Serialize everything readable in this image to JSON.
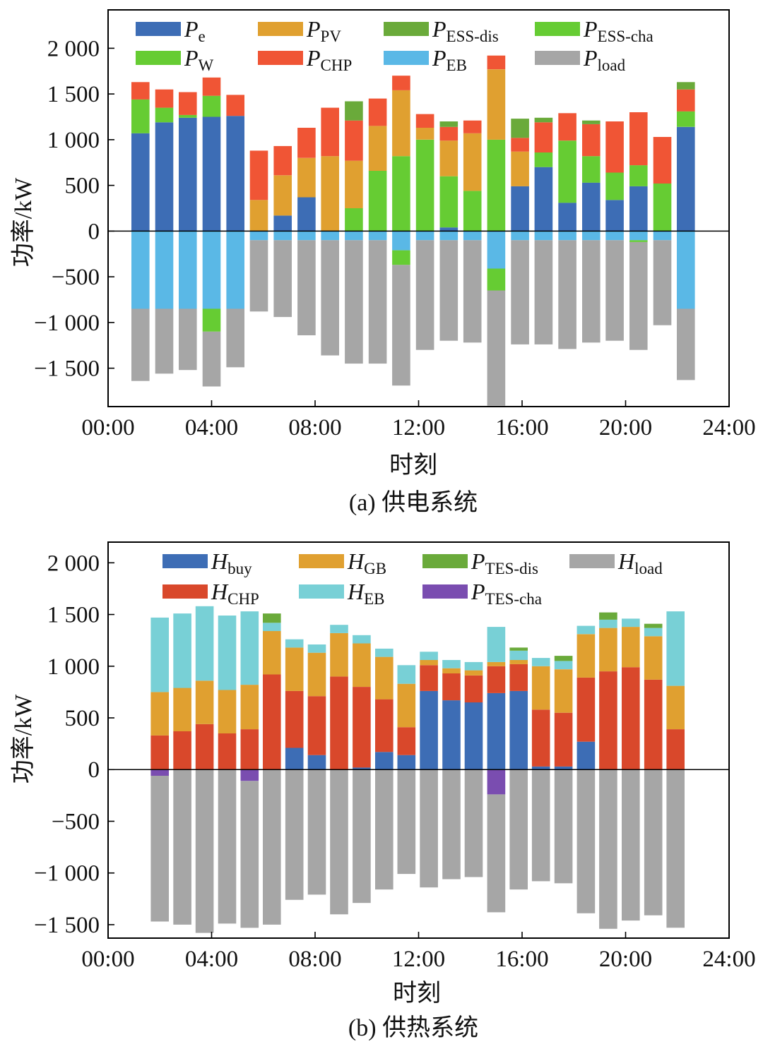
{
  "chart_data": [
    {
      "type": "bar",
      "stacked": true,
      "caption": "(a) 供电系统",
      "xlabel": "时刻",
      "ylabel": "功率/kW",
      "xlim": [
        0,
        24
      ],
      "ylim": [
        -1920,
        2420
      ],
      "x_ticks": [
        {
          "value": 0,
          "label": "00:00"
        },
        {
          "value": 4,
          "label": "04:00"
        },
        {
          "value": 8,
          "label": "08:00"
        },
        {
          "value": 12,
          "label": "12:00"
        },
        {
          "value": 16,
          "label": "16:00"
        },
        {
          "value": 20,
          "label": "20:00"
        },
        {
          "value": 24,
          "label": "24:00"
        }
      ],
      "y_ticks": [
        {
          "value": 2000,
          "label": "2 000"
        },
        {
          "value": 1500,
          "label": "1 500"
        },
        {
          "value": 1000,
          "label": "1 000"
        },
        {
          "value": 500,
          "label": "500"
        },
        {
          "value": 0,
          "label": "0"
        },
        {
          "value": -500,
          "label": "−500"
        },
        {
          "value": -1000,
          "label": "−1 000"
        },
        {
          "value": -1500,
          "label": "−1 500"
        }
      ],
      "hours": [
        1.25,
        2.17,
        3.08,
        4.0,
        4.92,
        5.83,
        6.75,
        7.67,
        8.58,
        9.5,
        10.42,
        11.33,
        12.25,
        13.17,
        14.08,
        15.0,
        15.92,
        16.83,
        17.75,
        18.67,
        19.58,
        20.5,
        21.42,
        22.33
      ],
      "bar_width_hours": 0.7,
      "legend_rows": [
        [
          "Pe",
          "PPV",
          "PESSdis",
          "PESScha"
        ],
        [
          "PW",
          "PCHP",
          "PEB",
          "Pload"
        ]
      ],
      "series": [
        {
          "key": "Pe",
          "name": "P",
          "sub": "e",
          "color": "#3d6db5",
          "values": [
            1070,
            1190,
            1240,
            1250,
            1260,
            0,
            170,
            370,
            0,
            0,
            0,
            0,
            0,
            40,
            0,
            0,
            490,
            700,
            310,
            530,
            340,
            490,
            0,
            1140
          ]
        },
        {
          "key": "PW",
          "name": "P",
          "sub": "W",
          "color": "#66cc33",
          "values": [
            370,
            160,
            30,
            230,
            0,
            0,
            0,
            0,
            0,
            250,
            660,
            820,
            1000,
            560,
            440,
            1000,
            0,
            160,
            680,
            290,
            300,
            230,
            520,
            170
          ]
        },
        {
          "key": "PPV",
          "name": "P",
          "sub": "PV",
          "color": "#e0a030",
          "values": [
            0,
            0,
            0,
            0,
            0,
            340,
            440,
            430,
            820,
            520,
            490,
            720,
            130,
            390,
            630,
            770,
            380,
            0,
            0,
            0,
            0,
            0,
            0,
            0
          ]
        },
        {
          "key": "PCHP",
          "name": "P",
          "sub": "CHP",
          "color": "#f05535",
          "values": [
            190,
            200,
            250,
            200,
            230,
            540,
            320,
            330,
            530,
            440,
            300,
            160,
            150,
            150,
            140,
            150,
            150,
            330,
            300,
            350,
            560,
            580,
            510,
            240
          ]
        },
        {
          "key": "PESSdis",
          "name": "P",
          "sub": "ESS-dis",
          "color": "#6aaa3a",
          "values": [
            0,
            0,
            0,
            0,
            0,
            0,
            0,
            0,
            0,
            210,
            0,
            0,
            0,
            60,
            0,
            0,
            210,
            50,
            0,
            40,
            0,
            0,
            0,
            80
          ]
        },
        {
          "key": "PEB",
          "name": "P",
          "sub": "EB",
          "color": "#5ab8e6",
          "values": [
            -850,
            -850,
            -850,
            -850,
            -850,
            -100,
            -100,
            -100,
            -100,
            -100,
            -100,
            -210,
            -100,
            -100,
            -100,
            -410,
            -100,
            -100,
            -100,
            -100,
            -100,
            -100,
            -100,
            -850
          ]
        },
        {
          "key": "PESScha",
          "name": "P",
          "sub": "ESS-cha",
          "color": "#66cc33",
          "values": [
            0,
            0,
            0,
            -250,
            0,
            0,
            0,
            0,
            0,
            0,
            0,
            -160,
            0,
            0,
            0,
            -240,
            0,
            0,
            0,
            0,
            0,
            -20,
            0,
            0
          ]
        },
        {
          "key": "Pload",
          "name": "P",
          "sub": "load",
          "color": "#a6a6a6",
          "values": [
            -790,
            -710,
            -670,
            -600,
            -640,
            -780,
            -840,
            -1040,
            -1260,
            -1350,
            -1350,
            -1320,
            -1200,
            -1100,
            -1120,
            -1260,
            -1140,
            -1140,
            -1190,
            -1120,
            -1100,
            -1180,
            -930,
            -780
          ]
        }
      ]
    },
    {
      "type": "bar",
      "stacked": true,
      "caption": "(b) 供热系统",
      "xlabel": "时刻",
      "ylabel": "功率/kW",
      "xlim": [
        0,
        24
      ],
      "ylim": [
        -1630,
        2200
      ],
      "x_ticks": [
        {
          "value": 0,
          "label": "00:00"
        },
        {
          "value": 4,
          "label": "04:00"
        },
        {
          "value": 8,
          "label": "08:00"
        },
        {
          "value": 12,
          "label": "12:00"
        },
        {
          "value": 16,
          "label": "16:00"
        },
        {
          "value": 20,
          "label": "20:00"
        },
        {
          "value": 24,
          "label": "24:00"
        }
      ],
      "y_ticks": [
        {
          "value": 2000,
          "label": "2 000"
        },
        {
          "value": 1500,
          "label": "1 500"
        },
        {
          "value": 1000,
          "label": "1 000"
        },
        {
          "value": 500,
          "label": "500"
        },
        {
          "value": 0,
          "label": "0"
        },
        {
          "value": -500,
          "label": "−500"
        },
        {
          "value": -1000,
          "label": "−1 000"
        },
        {
          "value": -1500,
          "label": "−1 500"
        }
      ],
      "hours": [
        2.0,
        2.87,
        3.73,
        4.6,
        5.47,
        6.33,
        7.2,
        8.07,
        8.93,
        9.8,
        10.67,
        11.53,
        12.4,
        13.27,
        14.13,
        15.0,
        15.87,
        16.73,
        17.6,
        18.47,
        19.33,
        20.2,
        21.07,
        21.93
      ],
      "bar_width_hours": 0.7,
      "legend_rows": [
        [
          "Hbuy",
          "HGB",
          "PTESdis",
          "Hload"
        ],
        [
          "HCHP",
          "HEB",
          "PTEScha"
        ]
      ],
      "series": [
        {
          "key": "Hbuy",
          "name": "H",
          "sub": "buy",
          "color": "#3d6db5",
          "values": [
            0,
            0,
            0,
            0,
            0,
            0,
            210,
            140,
            0,
            20,
            170,
            140,
            760,
            670,
            650,
            740,
            760,
            30,
            30,
            270,
            0,
            0,
            0,
            0
          ]
        },
        {
          "key": "HCHP",
          "name": "H",
          "sub": "CHP",
          "color": "#d9482b",
          "values": [
            330,
            370,
            440,
            350,
            390,
            920,
            550,
            570,
            900,
            780,
            510,
            270,
            250,
            260,
            260,
            260,
            260,
            550,
            520,
            620,
            950,
            990,
            870,
            390
          ]
        },
        {
          "key": "HGB",
          "name": "H",
          "sub": "GB",
          "color": "#e0a030",
          "values": [
            420,
            420,
            420,
            420,
            430,
            420,
            420,
            420,
            420,
            420,
            410,
            420,
            50,
            50,
            50,
            40,
            40,
            420,
            420,
            420,
            420,
            390,
            420,
            420
          ]
        },
        {
          "key": "HEB",
          "name": "H",
          "sub": "EB",
          "color": "#78d0d6",
          "values": [
            720,
            720,
            720,
            720,
            710,
            80,
            80,
            80,
            80,
            80,
            80,
            180,
            80,
            80,
            80,
            340,
            90,
            80,
            80,
            80,
            80,
            80,
            80,
            720
          ]
        },
        {
          "key": "PTESdis",
          "name": "P",
          "sub": "TES-dis",
          "color": "#6aaa3a",
          "values": [
            0,
            0,
            0,
            0,
            0,
            90,
            0,
            0,
            0,
            0,
            0,
            0,
            0,
            0,
            0,
            0,
            30,
            0,
            50,
            0,
            70,
            0,
            40,
            0
          ]
        },
        {
          "key": "PTEScha",
          "name": "P",
          "sub": "TES-cha",
          "color": "#7a4db0",
          "values": [
            -60,
            0,
            0,
            0,
            -110,
            0,
            0,
            0,
            0,
            0,
            0,
            0,
            0,
            0,
            0,
            -240,
            0,
            0,
            0,
            0,
            0,
            0,
            0,
            0
          ]
        },
        {
          "key": "Hload",
          "name": "H",
          "sub": "load",
          "color": "#a6a6a6",
          "values": [
            -1410,
            -1500,
            -1580,
            -1490,
            -1420,
            -1500,
            -1260,
            -1210,
            -1400,
            -1290,
            -1160,
            -1010,
            -1140,
            -1060,
            -1040,
            -1140,
            -1160,
            -1080,
            -1100,
            -1390,
            -1540,
            -1460,
            -1410,
            -1530
          ]
        }
      ]
    }
  ]
}
